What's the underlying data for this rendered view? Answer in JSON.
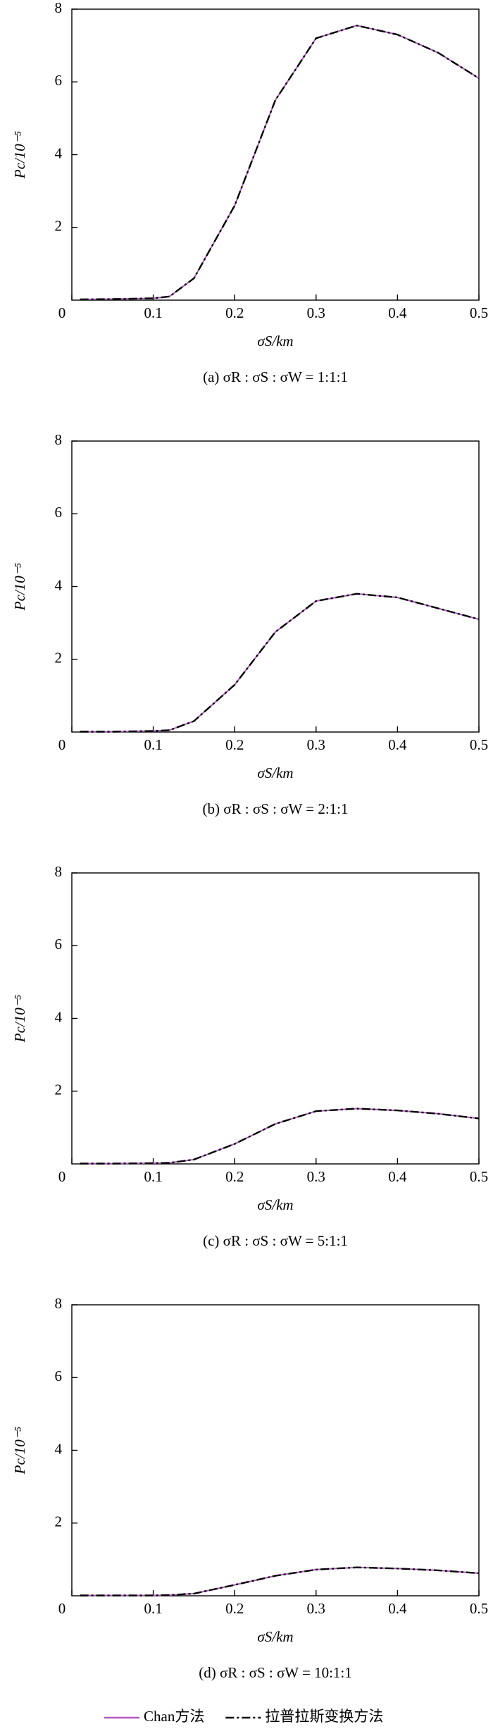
{
  "chart_data": [
    {
      "type": "line",
      "caption": "(a) σR : σS : σW = 1:1:1",
      "xlabel": "σS/km",
      "ylabel": "Pc/10⁻⁵",
      "x": [
        0.01,
        0.05,
        0.1,
        0.12,
        0.15,
        0.2,
        0.25,
        0.3,
        0.35,
        0.4,
        0.45,
        0.5
      ],
      "series": [
        {
          "name": "Chan方法",
          "color": "#b05bbf",
          "style": "solid",
          "values": [
            0.02,
            0.03,
            0.05,
            0.1,
            0.6,
            2.6,
            5.5,
            7.2,
            7.55,
            7.3,
            6.8,
            6.1
          ]
        },
        {
          "name": "拉普拉斯变换方法",
          "color": "#000000",
          "style": "dashdot",
          "values": [
            0.02,
            0.03,
            0.05,
            0.1,
            0.6,
            2.6,
            5.5,
            7.2,
            7.55,
            7.3,
            6.8,
            6.1
          ]
        }
      ],
      "xlim": [
        0,
        0.5
      ],
      "ylim": [
        0,
        8
      ],
      "xticks": [
        0,
        0.1,
        0.2,
        0.3,
        0.4,
        0.5
      ],
      "yticks": [
        2,
        4,
        6,
        8
      ]
    },
    {
      "type": "line",
      "caption": "(b) σR : σS : σW = 2:1:1",
      "xlabel": "σS/km",
      "ylabel": "Pc/10⁻⁵",
      "x": [
        0.01,
        0.05,
        0.1,
        0.12,
        0.15,
        0.2,
        0.25,
        0.3,
        0.35,
        0.4,
        0.45,
        0.5
      ],
      "series": [
        {
          "color": "#b05bbf",
          "style": "solid",
          "values": [
            0.01,
            0.01,
            0.03,
            0.05,
            0.3,
            1.3,
            2.75,
            3.6,
            3.8,
            3.7,
            3.4,
            3.1
          ]
        },
        {
          "color": "#000000",
          "style": "dashdot",
          "values": [
            0.01,
            0.01,
            0.03,
            0.05,
            0.3,
            1.3,
            2.75,
            3.6,
            3.8,
            3.7,
            3.4,
            3.1
          ]
        }
      ],
      "xlim": [
        0,
        0.5
      ],
      "ylim": [
        0,
        8
      ],
      "xticks": [
        0,
        0.1,
        0.2,
        0.3,
        0.4,
        0.5
      ],
      "yticks": [
        2,
        4,
        6,
        8
      ]
    },
    {
      "type": "line",
      "caption": "(c) σR : σS : σW = 5:1:1",
      "xlabel": "σS/km",
      "ylabel": "Pc/10⁻⁵",
      "x": [
        0.01,
        0.05,
        0.1,
        0.12,
        0.15,
        0.2,
        0.25,
        0.3,
        0.35,
        0.4,
        0.45,
        0.5
      ],
      "series": [
        {
          "color": "#b05bbf",
          "style": "solid",
          "values": [
            0.01,
            0.01,
            0.02,
            0.03,
            0.12,
            0.55,
            1.1,
            1.45,
            1.52,
            1.47,
            1.38,
            1.25
          ]
        },
        {
          "color": "#000000",
          "style": "dashdot",
          "values": [
            0.01,
            0.01,
            0.02,
            0.03,
            0.12,
            0.55,
            1.1,
            1.45,
            1.52,
            1.47,
            1.38,
            1.25
          ]
        }
      ],
      "xlim": [
        0,
        0.5
      ],
      "ylim": [
        0,
        8
      ],
      "xticks": [
        0,
        0.1,
        0.2,
        0.3,
        0.4,
        0.5
      ],
      "yticks": [
        2,
        4,
        6,
        8
      ]
    },
    {
      "type": "line",
      "caption": "(d) σR : σS : σW = 10:1:1",
      "xlabel": "σS/km",
      "ylabel": "Pc/10⁻⁵",
      "x": [
        0.01,
        0.05,
        0.1,
        0.12,
        0.15,
        0.2,
        0.25,
        0.3,
        0.35,
        0.4,
        0.45,
        0.5
      ],
      "series": [
        {
          "color": "#b05bbf",
          "style": "solid",
          "values": [
            0.01,
            0.01,
            0.01,
            0.02,
            0.06,
            0.3,
            0.55,
            0.72,
            0.78,
            0.75,
            0.7,
            0.62
          ]
        },
        {
          "color": "#000000",
          "style": "dashdot",
          "values": [
            0.01,
            0.01,
            0.01,
            0.02,
            0.06,
            0.3,
            0.55,
            0.72,
            0.78,
            0.75,
            0.7,
            0.62
          ]
        }
      ],
      "xlim": [
        0,
        0.5
      ],
      "ylim": [
        0,
        8
      ],
      "xticks": [
        0,
        0.1,
        0.2,
        0.3,
        0.4,
        0.5
      ],
      "yticks": [
        2,
        4,
        6,
        8
      ]
    }
  ]
}
